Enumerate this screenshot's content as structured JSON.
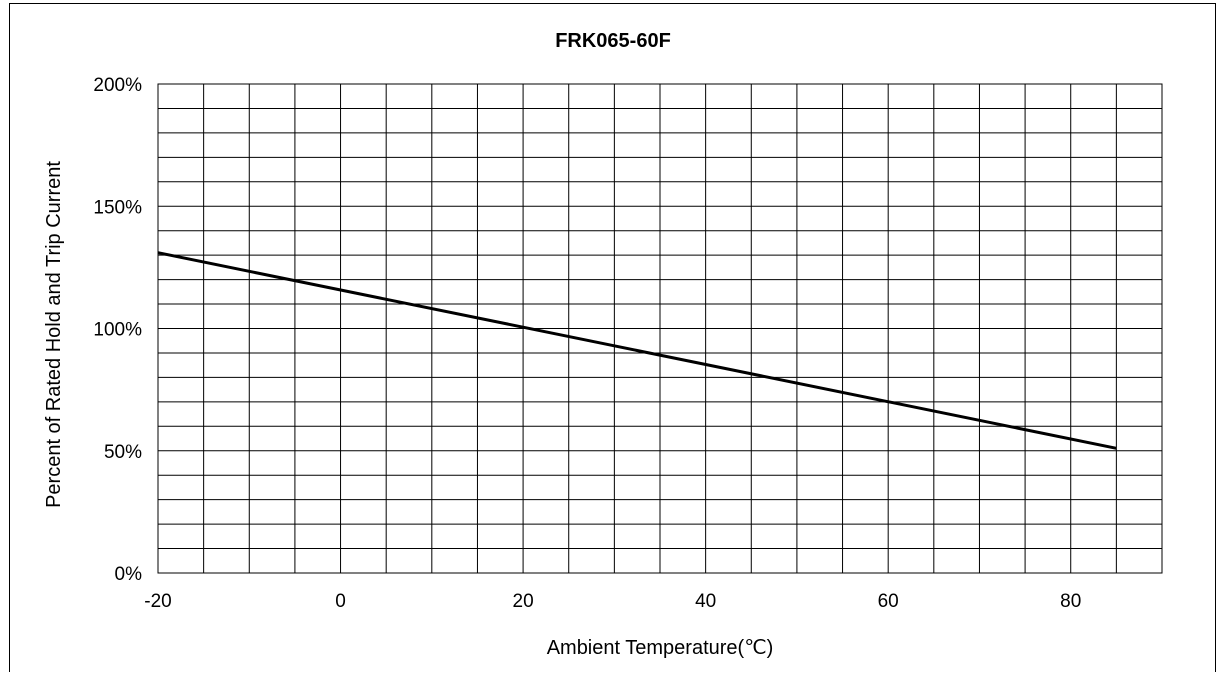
{
  "chart_data": {
    "type": "line",
    "title": "FRK065-60F",
    "xlabel": "Ambient Temperature(℃)",
    "ylabel": "Percent of Rated Hold and Trip Current",
    "xlim": [
      -20,
      90
    ],
    "ylim": [
      0,
      200
    ],
    "x_ticks": [
      -20,
      0,
      20,
      40,
      60,
      80
    ],
    "x_tick_labels": [
      "-20",
      "0",
      "20",
      "40",
      "60",
      "80"
    ],
    "y_ticks": [
      0,
      50,
      100,
      150,
      200
    ],
    "y_tick_labels": [
      "0%",
      "50%",
      "100%",
      "150%",
      "200%"
    ],
    "x_minor_step": 5,
    "y_minor_step": 10,
    "grid": true,
    "series": [
      {
        "x": [
          -20,
          85
        ],
        "y": [
          131,
          51
        ]
      }
    ],
    "line_color": "#000000"
  }
}
